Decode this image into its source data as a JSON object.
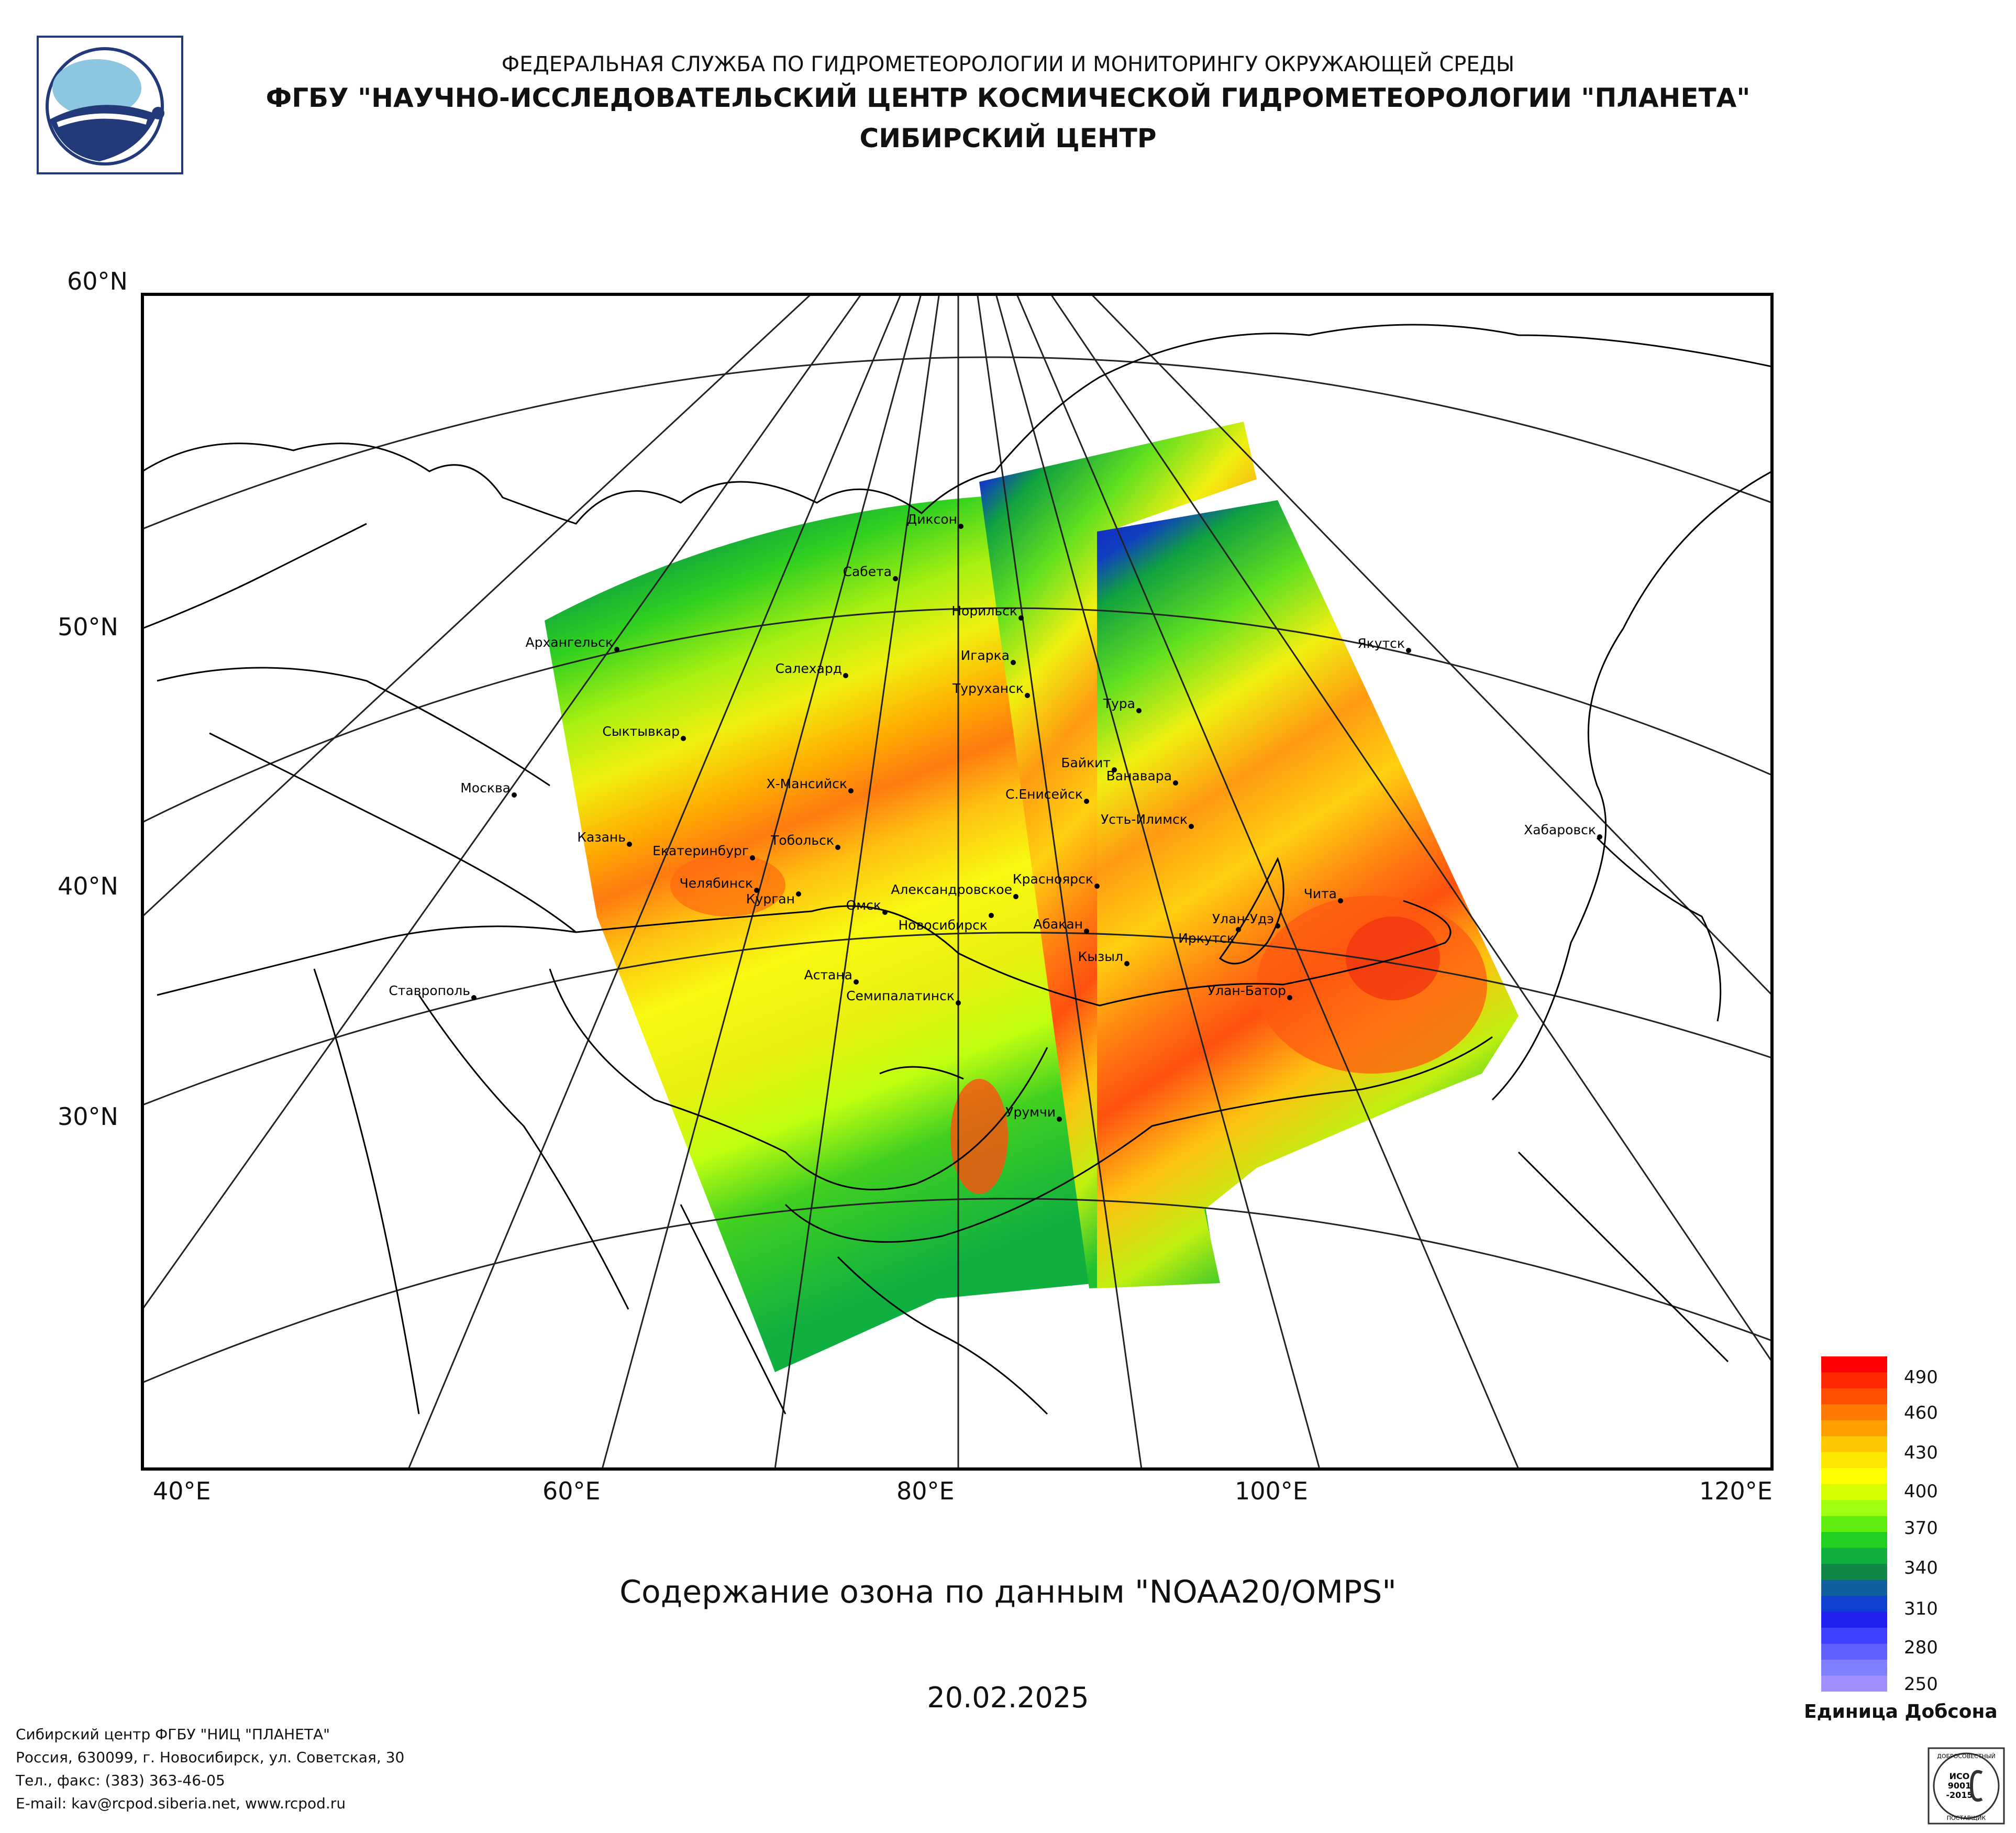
{
  "header": {
    "line1": "ФЕДЕРАЛЬНАЯ СЛУЖБА ПО ГИДРОМЕТЕОРОЛОГИИ И МОНИТОРИНГУ ОКРУЖАЮЩЕЙ СРЕДЫ",
    "line2": "ФГБУ \"НАУЧНО-ИССЛЕДОВАТЕЛЬСКИЙ ЦЕНТР КОСМИЧЕСКОЙ ГИДРОМЕТЕОРОЛОГИИ \"ПЛАНЕТА\"",
    "line3": "СИБИРСКИЙ ЦЕНТР"
  },
  "map": {
    "lat_labels": [
      "60°N",
      "50°N",
      "40°N",
      "30°N"
    ],
    "lon_labels": [
      "40°E",
      "60°E",
      "80°E",
      "100°E",
      "120°E"
    ],
    "cities": [
      "Диксон",
      "Сабета",
      "Норильск",
      "Игарка",
      "Архангельск",
      "Салехард",
      "Туруханск",
      "Тура",
      "Якутск",
      "Сыктывкар",
      "Байкит",
      "Ванавара",
      "Х-Мансийск",
      "С.Енисейск",
      "Москва",
      "Усть-Илимск",
      "Казань",
      "Екатеринбург",
      "Тобольск",
      "Хабаровск",
      "Красноярск",
      "Челябинск",
      "Курган",
      "Александровское",
      "Чита",
      "Омск",
      "Новосибирск",
      "Улан-Удэ",
      "Абакан",
      "Иркутск",
      "Кызыл",
      "Астана",
      "Ставрополь",
      "Семипалатинск",
      "Улан-Батор",
      "Урумчи"
    ],
    "colors": {
      "land_outline": "#000000",
      "low": "#1a1adb",
      "mid": "#1fd11f",
      "high": "#f2f21a",
      "max": "#e84010"
    }
  },
  "title": "Содержание озона по данным \"NOAA20/OMPS\"",
  "date": "20.02.2025",
  "colorbar": {
    "ticks": [
      "490",
      "460",
      "430",
      "400",
      "370",
      "340",
      "310",
      "280",
      "250"
    ],
    "unit": "Единица Добсона",
    "colors": [
      "#ff0000",
      "#ff2a00",
      "#ff5000",
      "#ff7a00",
      "#ffa000",
      "#ffc800",
      "#ffe800",
      "#ffff00",
      "#d8ff00",
      "#a0ff10",
      "#60ee10",
      "#20d020",
      "#10b040",
      "#108848",
      "#1060a0",
      "#1040d0",
      "#2020f0",
      "#4040ff",
      "#6060ff",
      "#8080ff",
      "#a090ff"
    ]
  },
  "footer": {
    "line1": "Сибирский центр ФГБУ \"НИЦ \"ПЛАНЕТА\"",
    "line2": "Россия, 630099, г. Новосибирск, ул. Советская, 30",
    "line3": "Тел., факс: (383) 363-46-05",
    "line4": "E-mail: kav@rcpod.siberia.net, www.rcpod.ru"
  },
  "iso_badge": {
    "top": "ДОБРОСОВЕСТНЫЙ",
    "mid1": "ИСО",
    "mid2": "9001",
    "mid3": "-2015",
    "bottom": "ПОСТАВЩИК"
  }
}
